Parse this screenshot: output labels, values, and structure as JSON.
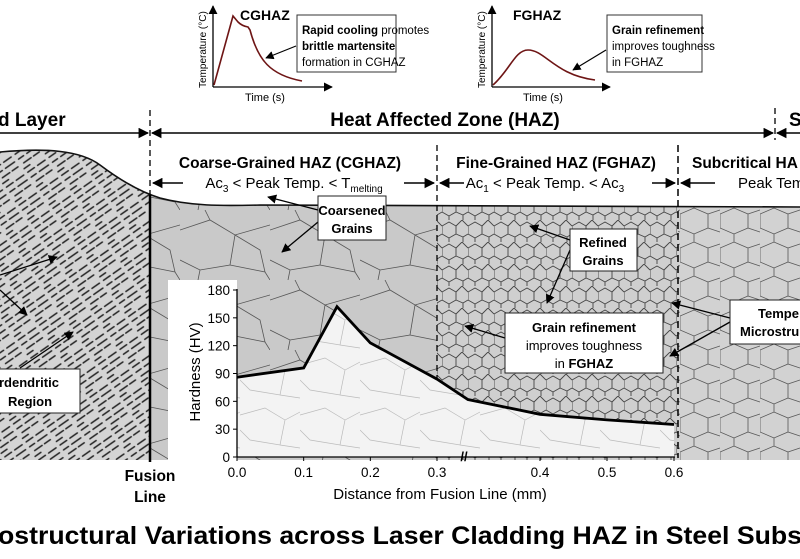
{
  "title": "ostructural Variations across Laser Cladding HAZ in Steel Subs",
  "thermal_cycles": [
    {
      "name": "CGHAZ",
      "ylabel": "Temperature (°C)",
      "xlabel": "Time (s)",
      "note_bold1": "Rapid cooling",
      "note1": " promotes",
      "note_bold2": "brittle martensite",
      "note3": "formation in CGHAZ"
    },
    {
      "name": "FGHAZ",
      "ylabel": "Temperature (°C)",
      "xlabel": "Time (s)",
      "note_bold1": "Grain refinement",
      "note2": "improves toughness",
      "note3": "in FGHAZ"
    }
  ],
  "zones": {
    "clad": "d Layer",
    "haz": "Heat Affected Zone (HAZ)",
    "sub": "S",
    "cghaz": {
      "title": "Coarse-Grained HAZ (CGHAZ)",
      "range_a": "Ac",
      "sub_a": "3",
      "range_b": " < Peak Temp. < T",
      "sub_b": "melting"
    },
    "fghaz": {
      "title": "Fine-Grained HAZ (FGHAZ)",
      "range_a": "Ac",
      "sub_a": "1",
      "range_b": " < Peak Temp. < Ac",
      "sub_b": "3"
    },
    "schaz": {
      "title": "Subcritical HA",
      "range": "Peak Temp"
    }
  },
  "labels": {
    "fusion1": "Fusion",
    "fusion2": "Line",
    "coarsened1": "Coarsened",
    "coarsened2": "Grains",
    "refined1": "Refined",
    "refined2": "Grains",
    "gr_bold": "Grain refinement",
    "gr2": "improves toughness",
    "gr3a": "in ",
    "gr3b": "FGHAZ",
    "temp1": "Tempe",
    "temp2": "Microstru",
    "inter1": "rdendritic",
    "inter2": "Region"
  },
  "chart_data": {
    "type": "line",
    "xlabel": "Distance from Fusion Line (mm)",
    "ylabel": "Hardness (HV)",
    "x_ticks": [
      "0.0",
      "0.1",
      "0.2",
      "0.3",
      "0.4",
      "0.5",
      "0.6"
    ],
    "y_ticks": [
      "0",
      "30",
      "60",
      "90",
      "120",
      "150",
      "180"
    ],
    "ylim": [
      0,
      180
    ],
    "xlim": [
      0,
      0.6
    ],
    "axis_break": "between 0.3 and 0.4",
    "x": [
      0.0,
      0.1,
      0.15,
      0.2,
      0.3,
      0.33,
      0.4,
      0.5,
      0.6
    ],
    "y": [
      86,
      96,
      162,
      123,
      84,
      62,
      46,
      40,
      35
    ],
    "color": "#000000"
  }
}
